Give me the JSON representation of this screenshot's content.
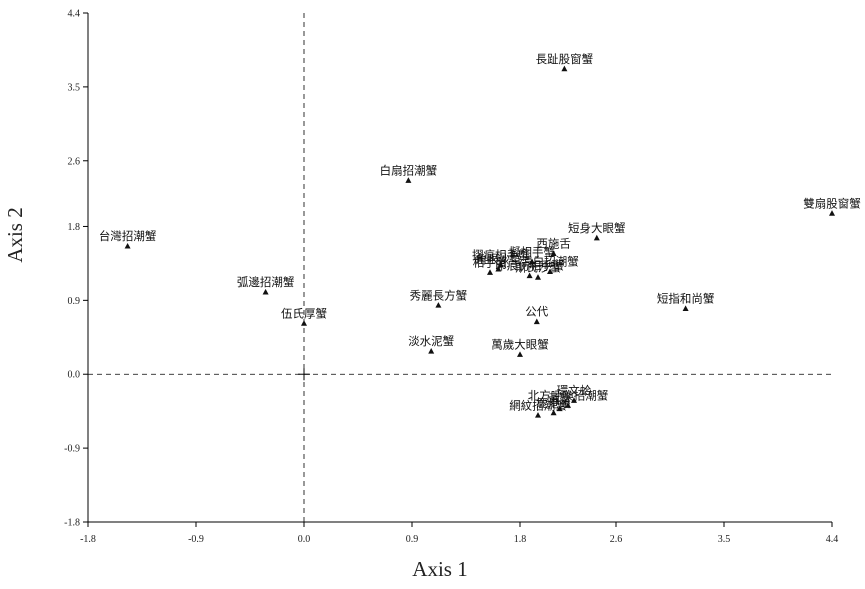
{
  "chart_data": {
    "type": "scatter",
    "title": "",
    "xlabel": "Axis 1",
    "ylabel": "Axis 2",
    "xlim": [
      -1.8,
      4.4
    ],
    "ylim": [
      -1.8,
      4.4
    ],
    "xticks": [
      "-1.8",
      "-0.9",
      "0.0",
      "0.9",
      "1.8",
      "2.6",
      "3.5",
      "4.4"
    ],
    "yticks": [
      "-1.8",
      "-0.9",
      "0.0",
      "0.9",
      "1.8",
      "2.6",
      "3.5",
      "4.4"
    ],
    "zero_lines": true,
    "grid": false,
    "points": [
      {
        "label": "長趾股窗蟹",
        "x": 2.17,
        "y": 3.72
      },
      {
        "label": "白扇招潮蟹",
        "x": 0.87,
        "y": 2.36
      },
      {
        "label": "雙扇股窗蟹",
        "x": 4.4,
        "y": 1.96
      },
      {
        "label": "台灣招潮蟹",
        "x": -1.47,
        "y": 1.56
      },
      {
        "label": "短身大眼蟹",
        "x": 2.44,
        "y": 1.66
      },
      {
        "label": "西施舌",
        "x": 2.08,
        "y": 1.47
      },
      {
        "label": "擬相手蟹",
        "x": 1.9,
        "y": 1.37
      },
      {
        "label": "摺痕相手蟹",
        "x": 1.64,
        "y": 1.33
      },
      {
        "label": "相手蟹",
        "x": 1.55,
        "y": 1.24
      },
      {
        "label": "角眼沙蟹",
        "x": 1.62,
        "y": 1.28
      },
      {
        "label": "印痕仿相手蟹",
        "x": 1.88,
        "y": 1.2
      },
      {
        "label": "斯氏沙蟹",
        "x": 1.95,
        "y": 1.18
      },
      {
        "label": "清白招潮蟹",
        "x": 2.05,
        "y": 1.25
      },
      {
        "label": "弧邊招潮蟹",
        "x": -0.32,
        "y": 1.0
      },
      {
        "label": "秀麗長方蟹",
        "x": 1.12,
        "y": 0.84
      },
      {
        "label": "短指和尚蟹",
        "x": 3.18,
        "y": 0.8
      },
      {
        "label": "伍氏厚蟹",
        "x": 0.0,
        "y": 0.62
      },
      {
        "label": "公代",
        "x": 1.94,
        "y": 0.64
      },
      {
        "label": "淡水泥蟹",
        "x": 1.06,
        "y": 0.28
      },
      {
        "label": "萬歲大眼蟹",
        "x": 1.8,
        "y": 0.24
      },
      {
        "label": "環文蛤",
        "x": 2.25,
        "y": -0.32
      },
      {
        "label": "北方呼喚招潮蟹",
        "x": 2.2,
        "y": -0.38
      },
      {
        "label": "黃蟹",
        "x": 2.13,
        "y": -0.42
      },
      {
        "label": "鹿港蛤",
        "x": 2.08,
        "y": -0.47
      },
      {
        "label": "網紋招潮蟹",
        "x": 1.95,
        "y": -0.5
      }
    ]
  }
}
